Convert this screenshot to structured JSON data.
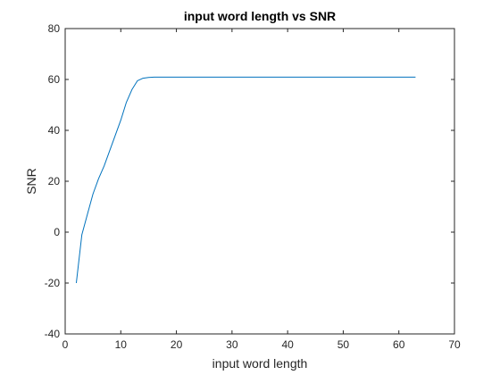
{
  "chart_data": {
    "type": "line",
    "title": "input word length vs SNR",
    "xlabel": "input word length",
    "ylabel": "SNR",
    "xlim": [
      0,
      70
    ],
    "ylim": [
      -40,
      80
    ],
    "xticks": [
      0,
      10,
      20,
      30,
      40,
      50,
      60,
      70
    ],
    "yticks": [
      -40,
      -20,
      0,
      20,
      40,
      60,
      80
    ],
    "grid": false,
    "line_color": "#0072BD",
    "series": [
      {
        "x": [
          2,
          3,
          4,
          5,
          6,
          7,
          8,
          9,
          10,
          11,
          12,
          13,
          14,
          15,
          16,
          17,
          18,
          19,
          20,
          25,
          30,
          35,
          40,
          45,
          50,
          55,
          60,
          63
        ],
        "y": [
          -20,
          -1,
          7,
          15,
          21,
          26,
          32,
          38,
          44,
          51,
          56,
          59.5,
          60.5,
          60.8,
          60.9,
          60.9,
          60.9,
          60.9,
          60.9,
          60.9,
          60.9,
          60.9,
          60.9,
          60.9,
          60.9,
          60.9,
          60.9,
          60.9
        ]
      }
    ]
  }
}
